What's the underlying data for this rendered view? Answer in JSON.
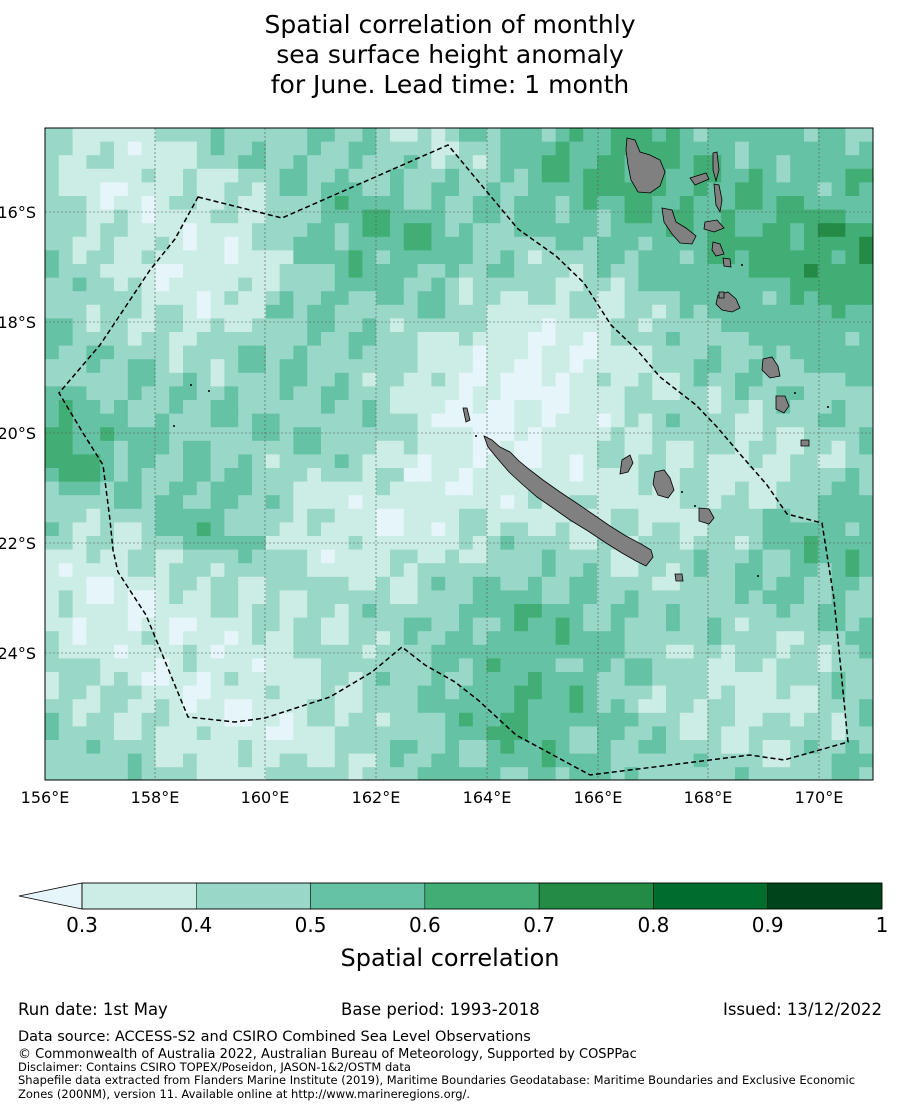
{
  "title": {
    "line1": "Spatial correlation of monthly",
    "line2": "sea surface height anomaly",
    "line3": "for June. Lead time: 1 month"
  },
  "map": {
    "lon_ticks": [
      "156°E",
      "158°E",
      "160°E",
      "162°E",
      "164°E",
      "166°E",
      "168°E",
      "170°E"
    ],
    "lat_ticks": [
      "16°S",
      "18°S",
      "20°S",
      "22°S",
      "24°S"
    ],
    "land_color": "#808080",
    "eez_outline": "dashed black",
    "grid": true
  },
  "colorbar": {
    "title": "Spatial correlation",
    "tick_labels": [
      "0.3",
      "0.4",
      "0.5",
      "0.6",
      "0.7",
      "0.8",
      "0.9",
      "1"
    ],
    "extend": "min",
    "under_color": "#e5f5f9",
    "colors": [
      "#ccece6",
      "#99d8c9",
      "#66c2a4",
      "#41ae76",
      "#238b45",
      "#006d2c",
      "#00441b"
    ]
  },
  "footer": {
    "run_date": "Run date: 1st May",
    "base_period": "Base period: 1993-2018",
    "issued": "Issued: 13/12/2022",
    "data_source": "Data source: ACCESS-S2 and CSIRO Combined Sea Level Observations",
    "copyright": "© Commonwealth of Australia 2022, Australian Bureau of Meteorology, Supported by COSPPac",
    "disclaimer": "Disclaimer: Contains CSIRO TOPEX/Poseidon, JASON-1&2/OSTM data",
    "shapefile1": "Shapefile data extracted from Flanders Marine Institute (2019), Maritime Boundaries Geodatabase: Maritime Boundaries and Exclusive Economic",
    "shapefile2": "Zones (200NM), version 11. Available online at http://www.marineregions.org/."
  }
}
